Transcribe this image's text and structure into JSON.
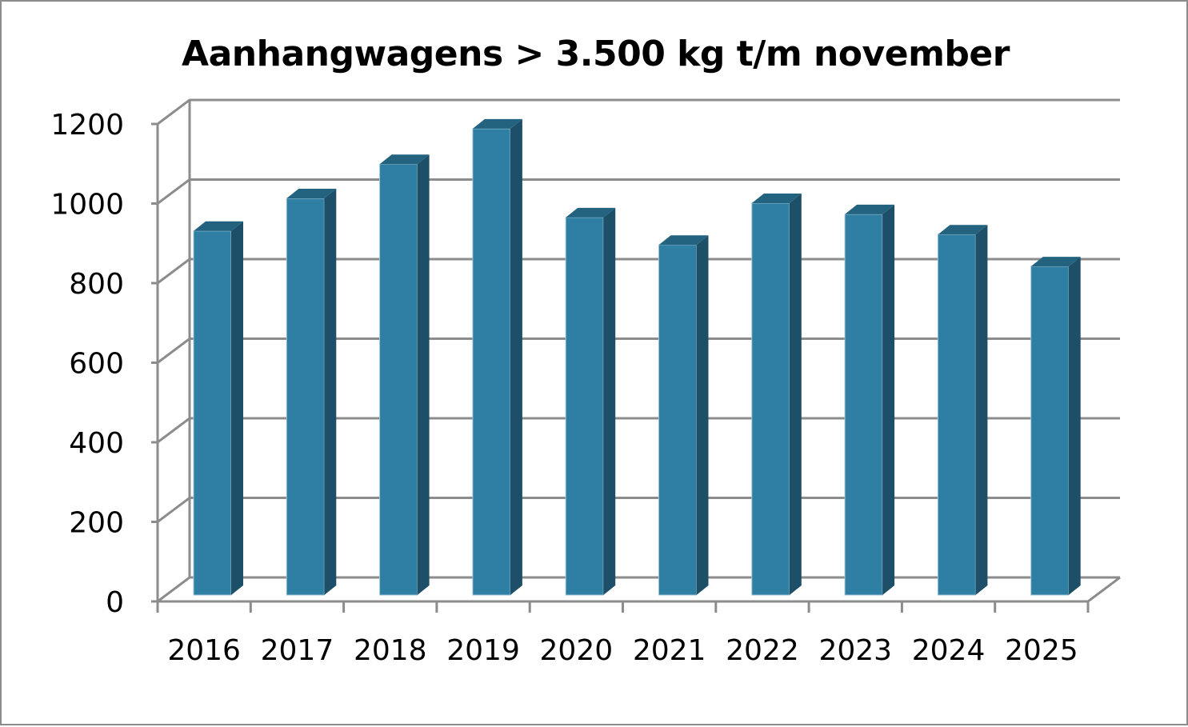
{
  "chart_data": {
    "type": "bar",
    "style": "3d-column",
    "title": "Aanhangwagens > 3.500 kg t/m november",
    "xlabel": "",
    "ylabel": "",
    "categories": [
      "2016",
      "2017",
      "2018",
      "2019",
      "2020",
      "2021",
      "2022",
      "2023",
      "2024",
      "2025"
    ],
    "values": [
      915,
      997,
      1083,
      1172,
      949,
      880,
      985,
      957,
      906,
      826
    ],
    "ylim": [
      0,
      1200
    ],
    "yticks": [
      "0",
      "200",
      "400",
      "600",
      "800",
      "1000",
      "1200"
    ],
    "grid": true,
    "legend": "none",
    "colors": {
      "bar_front": "#2e7fa3",
      "bar_side": "#1d5068",
      "bar_top": "#236380",
      "grid": "#8c8c8c"
    }
  }
}
